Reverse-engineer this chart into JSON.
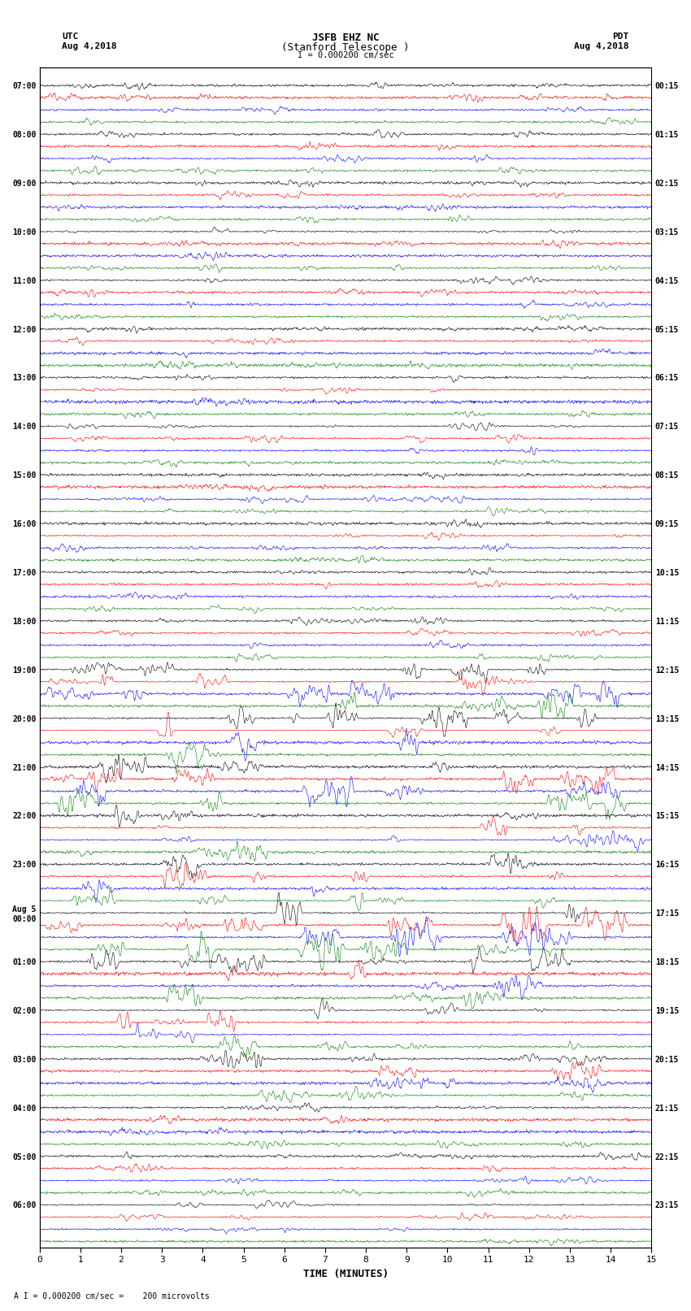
{
  "title_line1": "JSFB EHZ NC",
  "title_line2": "(Stanford Telescope )",
  "scale_label": "I = 0.000200 cm/sec",
  "utc_label": "UTC\nAug 4,2018",
  "pdt_label": "PDT\nAug 4,2018",
  "xlabel": "TIME (MINUTES)",
  "footnote": "A I = 0.000200 cm/sec =    200 microvolts",
  "left_times": [
    "07:00",
    "08:00",
    "09:00",
    "10:00",
    "11:00",
    "12:00",
    "13:00",
    "14:00",
    "15:00",
    "16:00",
    "17:00",
    "18:00",
    "19:00",
    "20:00",
    "21:00",
    "22:00",
    "23:00",
    "Aug 5\n00:00",
    "01:00",
    "02:00",
    "03:00",
    "04:00",
    "05:00",
    "06:00"
  ],
  "right_times": [
    "00:15",
    "01:15",
    "02:15",
    "03:15",
    "04:15",
    "05:15",
    "06:15",
    "07:15",
    "08:15",
    "09:15",
    "10:15",
    "11:15",
    "12:15",
    "13:15",
    "14:15",
    "15:15",
    "16:15",
    "17:15",
    "18:15",
    "19:15",
    "20:15",
    "21:15",
    "22:15",
    "23:15"
  ],
  "n_rows": 24,
  "traces_per_row": 4,
  "colors": [
    "black",
    "red",
    "blue",
    "green"
  ],
  "bg_color": "white",
  "xmin": 0,
  "xmax": 15,
  "xticks": [
    0,
    1,
    2,
    3,
    4,
    5,
    6,
    7,
    8,
    9,
    10,
    11,
    12,
    13,
    14,
    15
  ],
  "seed": 42
}
